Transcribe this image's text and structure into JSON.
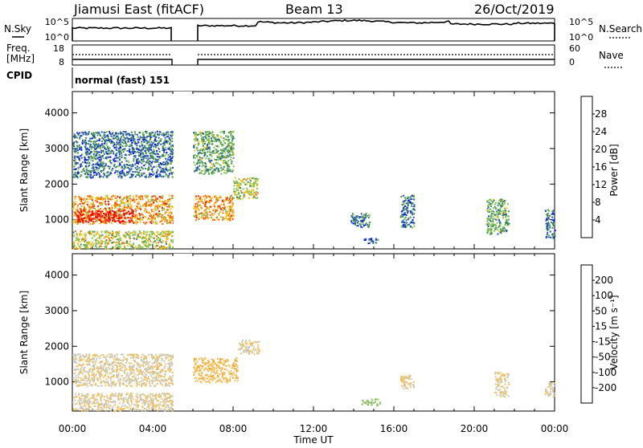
{
  "header": {
    "title": "Jiamusi East (fitACF)",
    "beam": "Beam 13",
    "date": "26/Oct/2019"
  },
  "nsky_panel": {
    "left_label": "N.Sky",
    "left_ticks": [
      "10^5",
      "10^0"
    ],
    "right_ticks": [
      "10^5",
      "10^0"
    ],
    "right_label": "N.Search"
  },
  "freq_panel": {
    "left_label_1": "Freq.",
    "left_label_2": "[MHz]",
    "left_ticks": [
      "18",
      "8"
    ],
    "right_ticks": [
      "60",
      "0"
    ],
    "right_label": "Nave"
  },
  "cpid_panel": {
    "left_label": "CPID",
    "program": "normal (fast) 151"
  },
  "colors": {
    "power_scale": [
      "#0000ff",
      "#2050b0",
      "#3c8a5a",
      "#80c050",
      "#f0c020",
      "#f07010",
      "#e02010",
      "#ff0000"
    ],
    "velocity_scale": [
      "#ff0000",
      "#e02010",
      "#f07010",
      "#f0a020",
      "#f0c060",
      "#c8c8c0",
      "#80c050",
      "#3c8a5a",
      "#2050b0",
      "#0000ff"
    ]
  },
  "chart_data": [
    {
      "type": "heatmap",
      "name": "power",
      "ylabel": "Slant Range [km]",
      "xlabel": "Time UT",
      "x_ticks": [
        "00:00",
        "04:00",
        "08:00",
        "12:00",
        "16:00",
        "20:00",
        "00:00"
      ],
      "y_ticks": [
        "1000",
        "2000",
        "3000",
        "4000"
      ],
      "xlim_hours": [
        0,
        24
      ],
      "ylim_km": [
        180,
        4600
      ],
      "colorbar": {
        "label": "Power [dB]",
        "ticks": [
          "4",
          "8",
          "12",
          "16",
          "20",
          "24",
          "28"
        ],
        "range": [
          0,
          32
        ]
      },
      "data_gap_hours": [
        5.0,
        6.0
      ],
      "echo_regions": [
        {
          "t_start": 0.0,
          "t_end": 5.0,
          "r_min": 900,
          "r_max": 1700,
          "value": 20
        },
        {
          "t_start": 0.2,
          "t_end": 3.0,
          "r_min": 950,
          "r_max": 1300,
          "value": 28
        },
        {
          "t_start": 6.0,
          "t_end": 8.0,
          "r_min": 1000,
          "r_max": 1700,
          "value": 20
        },
        {
          "t_start": 8.0,
          "t_end": 9.2,
          "r_min": 1600,
          "r_max": 2200,
          "value": 16
        },
        {
          "t_start": 0.0,
          "t_end": 5.0,
          "r_min": 200,
          "r_max": 700,
          "value": 16
        },
        {
          "t_start": 0.0,
          "t_end": 5.0,
          "r_min": 2200,
          "r_max": 3500,
          "value": 8
        },
        {
          "t_start": 6.0,
          "t_end": 8.0,
          "r_min": 2300,
          "r_max": 3500,
          "value": 12
        },
        {
          "t_start": 13.8,
          "t_end": 14.8,
          "r_min": 800,
          "r_max": 1200,
          "value": 8
        },
        {
          "t_start": 14.5,
          "t_end": 15.2,
          "r_min": 350,
          "r_max": 500,
          "value": 4
        },
        {
          "t_start": 16.3,
          "t_end": 17.0,
          "r_min": 800,
          "r_max": 1700,
          "value": 8
        },
        {
          "t_start": 20.6,
          "t_end": 21.7,
          "r_min": 600,
          "r_max": 1600,
          "value": 12
        },
        {
          "t_start": 23.5,
          "t_end": 24.0,
          "r_min": 500,
          "r_max": 1300,
          "value": 8
        }
      ]
    },
    {
      "type": "heatmap",
      "name": "velocity",
      "ylabel": "Slant Range [km]",
      "xlabel": "Time UT",
      "x_ticks": [
        "00:00",
        "04:00",
        "08:00",
        "12:00",
        "16:00",
        "20:00",
        "00:00"
      ],
      "y_ticks": [
        "1000",
        "2000",
        "3000",
        "4000"
      ],
      "xlim_hours": [
        0,
        24
      ],
      "ylim_km": [
        180,
        4600
      ],
      "colorbar": {
        "label": "Velocity [m s⁻¹]",
        "ticks": [
          "-200",
          "-100",
          "-50",
          "-15",
          "15",
          "50",
          "100",
          "200"
        ],
        "range": [
          -250,
          250
        ]
      },
      "data_gap_hours": [
        5.0,
        6.0
      ],
      "echo_regions": [
        {
          "t_start": 0.0,
          "t_end": 5.0,
          "r_min": 900,
          "r_max": 1800,
          "value": 0
        },
        {
          "t_start": 6.0,
          "t_end": 8.2,
          "r_min": 1000,
          "r_max": 1700,
          "value": -30
        },
        {
          "t_start": 8.2,
          "t_end": 9.3,
          "r_min": 1800,
          "r_max": 2200,
          "value": 0
        },
        {
          "t_start": 0.0,
          "t_end": 5.0,
          "r_min": 200,
          "r_max": 700,
          "value": 0
        },
        {
          "t_start": 14.3,
          "t_end": 15.3,
          "r_min": 350,
          "r_max": 550,
          "value": 70
        },
        {
          "t_start": 16.3,
          "t_end": 17.0,
          "r_min": 800,
          "r_max": 1200,
          "value": 0
        },
        {
          "t_start": 21.0,
          "t_end": 21.7,
          "r_min": 600,
          "r_max": 1300,
          "value": 0
        },
        {
          "t_start": 23.5,
          "t_end": 24.0,
          "r_min": 600,
          "r_max": 1000,
          "value": 0
        }
      ]
    }
  ]
}
